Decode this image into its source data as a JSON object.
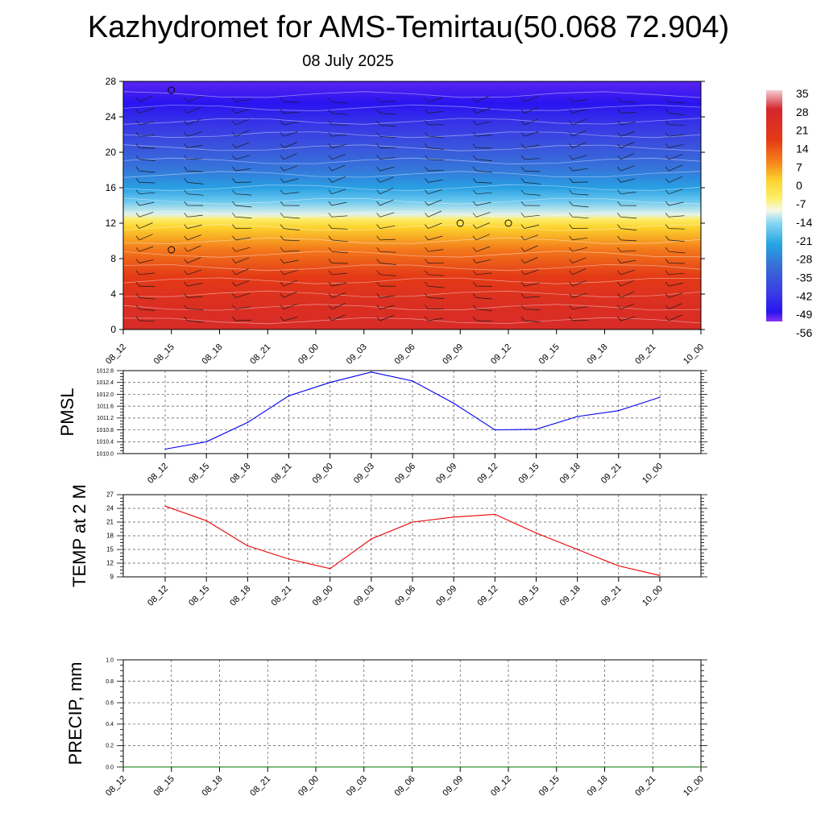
{
  "header": {
    "title": "Kazhydromet for AMS-Temirtau(50.068 72.904)",
    "subtitle": "08 July 2025"
  },
  "chart_data": [
    {
      "type": "heatmap",
      "title": "",
      "xlabel": "",
      "ylabel": "",
      "x_tick_labels": [
        "08_12",
        "08_15",
        "08_18",
        "08_21",
        "09_00",
        "09_03",
        "09_06",
        "09_09",
        "09_12",
        "09_15",
        "09_18",
        "09_21",
        "10_00"
      ],
      "y_ticks": [
        0,
        4,
        8,
        12,
        16,
        20,
        24,
        28
      ],
      "ylim": [
        0,
        28
      ],
      "colorbar_labels": [
        "35",
        "28",
        "21",
        "14",
        "7",
        "0",
        "-7",
        "-14",
        "-21",
        "-28",
        "-35",
        "-42",
        "-49",
        "-56"
      ],
      "colorbar_range": [
        -60,
        38
      ],
      "color_stops": [
        {
          "value": 38,
          "color": "#f5cdd5"
        },
        {
          "value": 30,
          "color": "#d4262c"
        },
        {
          "value": 17,
          "color": "#e43a16"
        },
        {
          "value": 7,
          "color": "#f7881c"
        },
        {
          "value": 0,
          "color": "#fcd22c"
        },
        {
          "value": -8,
          "color": "#fcf06c"
        },
        {
          "value": -13,
          "color": "#f6f8e6"
        },
        {
          "value": -18,
          "color": "#8ad8f4"
        },
        {
          "value": -27,
          "color": "#26a6e4"
        },
        {
          "value": -38,
          "color": "#3a66d6"
        },
        {
          "value": -48,
          "color": "#3a3ce4"
        },
        {
          "value": -56,
          "color": "#2814f0"
        },
        {
          "value": -60,
          "color": "#8a34f0"
        }
      ],
      "temperature_profile": [
        {
          "y": 0,
          "t": 27
        },
        {
          "y": 3,
          "t": 24
        },
        {
          "y": 6,
          "t": 17
        },
        {
          "y": 9,
          "t": 9
        },
        {
          "y": 11.5,
          "t": 0
        },
        {
          "y": 12.4,
          "t": -7
        },
        {
          "y": 13,
          "t": -14
        },
        {
          "y": 14.5,
          "t": -21
        },
        {
          "y": 16,
          "t": -28
        },
        {
          "y": 18,
          "t": -35
        },
        {
          "y": 20.5,
          "t": -42
        },
        {
          "y": 23,
          "t": -49
        },
        {
          "y": 25.5,
          "t": -56
        },
        {
          "y": 28,
          "t": -58
        }
      ],
      "calm_markers": [
        {
          "x": "08_15",
          "y": 27
        },
        {
          "x": "08_15",
          "y": 9
        },
        {
          "x": "09_09",
          "y": 12
        },
        {
          "x": "09_12",
          "y": 12
        }
      ]
    },
    {
      "type": "line",
      "title": "",
      "ylabel": "PMSL",
      "categories": [
        "08_12",
        "08_15",
        "08_18",
        "08_21",
        "09_00",
        "09_03",
        "09_06",
        "09_09",
        "09_12",
        "09_15",
        "09_18",
        "09_21",
        "10_00"
      ],
      "series": [
        {
          "values": [
            1010.15,
            1010.4,
            1011.05,
            1011.95,
            1012.4,
            1012.75,
            1012.45,
            1011.7,
            1010.8,
            1010.82,
            1011.25,
            1011.45,
            1011.9
          ],
          "color": "#0000ee"
        }
      ],
      "ylim": [
        1010.0,
        1012.8
      ],
      "y_ticks": [
        "1010.0",
        "1010.4",
        "1010.8",
        "1011.2",
        "1011.6",
        "1012.0",
        "1012.4",
        "1012.8"
      ],
      "grid": true
    },
    {
      "type": "line",
      "title": "",
      "ylabel": "TEMP at 2 M",
      "categories": [
        "08_12",
        "08_15",
        "08_18",
        "08_21",
        "09_00",
        "09_03",
        "09_06",
        "09_09",
        "09_12",
        "09_15",
        "09_18",
        "09_21",
        "10_00"
      ],
      "series": [
        {
          "values": [
            24.5,
            21.3,
            15.8,
            12.9,
            10.8,
            17.3,
            21.0,
            22.1,
            22.7,
            18.6,
            15.0,
            11.4,
            9.3
          ],
          "color": "#ee0000"
        }
      ],
      "ylim": [
        9,
        27
      ],
      "y_ticks": [
        "9",
        "12",
        "15",
        "18",
        "21",
        "24",
        "27"
      ],
      "grid": true
    },
    {
      "type": "line",
      "title": "",
      "ylabel": "PRECIP, mm",
      "categories": [
        "08_12",
        "08_15",
        "08_18",
        "08_21",
        "09_00",
        "09_03",
        "09_06",
        "09_09",
        "09_12",
        "09_15",
        "09_18",
        "09_21",
        "10_00"
      ],
      "series": [
        {
          "values": [
            0,
            0,
            0,
            0,
            0,
            0,
            0,
            0,
            0,
            0,
            0,
            0,
            0
          ],
          "color": "#007700"
        }
      ],
      "ylim": [
        0,
        1
      ],
      "y_ticks": [
        "0.0",
        "0.2",
        "0.4",
        "0.6",
        "0.8",
        "1.0"
      ],
      "grid": true
    }
  ]
}
